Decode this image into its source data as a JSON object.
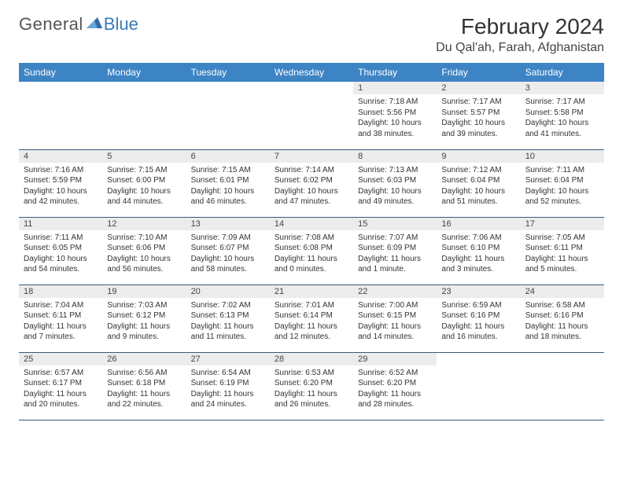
{
  "brand": {
    "name_part1": "General",
    "name_part2": "Blue"
  },
  "title": "February 2024",
  "location": "Du Qal'ah, Farah, Afghanistan",
  "colors": {
    "header_bg": "#3d84c4",
    "header_text": "#ffffff",
    "daynum_bg": "#ececec",
    "row_border": "#3d5a7a",
    "brand_gray": "#555555",
    "brand_blue": "#3a7ab8"
  },
  "typography": {
    "title_fontsize": 28,
    "location_fontsize": 16,
    "header_fontsize": 12,
    "cell_fontsize": 10
  },
  "day_headers": [
    "Sunday",
    "Monday",
    "Tuesday",
    "Wednesday",
    "Thursday",
    "Friday",
    "Saturday"
  ],
  "weeks": [
    [
      {
        "empty": true
      },
      {
        "empty": true
      },
      {
        "empty": true
      },
      {
        "empty": true
      },
      {
        "num": "1",
        "sunrise": "Sunrise: 7:18 AM",
        "sunset": "Sunset: 5:56 PM",
        "daylight": "Daylight: 10 hours and 38 minutes."
      },
      {
        "num": "2",
        "sunrise": "Sunrise: 7:17 AM",
        "sunset": "Sunset: 5:57 PM",
        "daylight": "Daylight: 10 hours and 39 minutes."
      },
      {
        "num": "3",
        "sunrise": "Sunrise: 7:17 AM",
        "sunset": "Sunset: 5:58 PM",
        "daylight": "Daylight: 10 hours and 41 minutes."
      }
    ],
    [
      {
        "num": "4",
        "sunrise": "Sunrise: 7:16 AM",
        "sunset": "Sunset: 5:59 PM",
        "daylight": "Daylight: 10 hours and 42 minutes."
      },
      {
        "num": "5",
        "sunrise": "Sunrise: 7:15 AM",
        "sunset": "Sunset: 6:00 PM",
        "daylight": "Daylight: 10 hours and 44 minutes."
      },
      {
        "num": "6",
        "sunrise": "Sunrise: 7:15 AM",
        "sunset": "Sunset: 6:01 PM",
        "daylight": "Daylight: 10 hours and 46 minutes."
      },
      {
        "num": "7",
        "sunrise": "Sunrise: 7:14 AM",
        "sunset": "Sunset: 6:02 PM",
        "daylight": "Daylight: 10 hours and 47 minutes."
      },
      {
        "num": "8",
        "sunrise": "Sunrise: 7:13 AM",
        "sunset": "Sunset: 6:03 PM",
        "daylight": "Daylight: 10 hours and 49 minutes."
      },
      {
        "num": "9",
        "sunrise": "Sunrise: 7:12 AM",
        "sunset": "Sunset: 6:04 PM",
        "daylight": "Daylight: 10 hours and 51 minutes."
      },
      {
        "num": "10",
        "sunrise": "Sunrise: 7:11 AM",
        "sunset": "Sunset: 6:04 PM",
        "daylight": "Daylight: 10 hours and 52 minutes."
      }
    ],
    [
      {
        "num": "11",
        "sunrise": "Sunrise: 7:11 AM",
        "sunset": "Sunset: 6:05 PM",
        "daylight": "Daylight: 10 hours and 54 minutes."
      },
      {
        "num": "12",
        "sunrise": "Sunrise: 7:10 AM",
        "sunset": "Sunset: 6:06 PM",
        "daylight": "Daylight: 10 hours and 56 minutes."
      },
      {
        "num": "13",
        "sunrise": "Sunrise: 7:09 AM",
        "sunset": "Sunset: 6:07 PM",
        "daylight": "Daylight: 10 hours and 58 minutes."
      },
      {
        "num": "14",
        "sunrise": "Sunrise: 7:08 AM",
        "sunset": "Sunset: 6:08 PM",
        "daylight": "Daylight: 11 hours and 0 minutes."
      },
      {
        "num": "15",
        "sunrise": "Sunrise: 7:07 AM",
        "sunset": "Sunset: 6:09 PM",
        "daylight": "Daylight: 11 hours and 1 minute."
      },
      {
        "num": "16",
        "sunrise": "Sunrise: 7:06 AM",
        "sunset": "Sunset: 6:10 PM",
        "daylight": "Daylight: 11 hours and 3 minutes."
      },
      {
        "num": "17",
        "sunrise": "Sunrise: 7:05 AM",
        "sunset": "Sunset: 6:11 PM",
        "daylight": "Daylight: 11 hours and 5 minutes."
      }
    ],
    [
      {
        "num": "18",
        "sunrise": "Sunrise: 7:04 AM",
        "sunset": "Sunset: 6:11 PM",
        "daylight": "Daylight: 11 hours and 7 minutes."
      },
      {
        "num": "19",
        "sunrise": "Sunrise: 7:03 AM",
        "sunset": "Sunset: 6:12 PM",
        "daylight": "Daylight: 11 hours and 9 minutes."
      },
      {
        "num": "20",
        "sunrise": "Sunrise: 7:02 AM",
        "sunset": "Sunset: 6:13 PM",
        "daylight": "Daylight: 11 hours and 11 minutes."
      },
      {
        "num": "21",
        "sunrise": "Sunrise: 7:01 AM",
        "sunset": "Sunset: 6:14 PM",
        "daylight": "Daylight: 11 hours and 12 minutes."
      },
      {
        "num": "22",
        "sunrise": "Sunrise: 7:00 AM",
        "sunset": "Sunset: 6:15 PM",
        "daylight": "Daylight: 11 hours and 14 minutes."
      },
      {
        "num": "23",
        "sunrise": "Sunrise: 6:59 AM",
        "sunset": "Sunset: 6:16 PM",
        "daylight": "Daylight: 11 hours and 16 minutes."
      },
      {
        "num": "24",
        "sunrise": "Sunrise: 6:58 AM",
        "sunset": "Sunset: 6:16 PM",
        "daylight": "Daylight: 11 hours and 18 minutes."
      }
    ],
    [
      {
        "num": "25",
        "sunrise": "Sunrise: 6:57 AM",
        "sunset": "Sunset: 6:17 PM",
        "daylight": "Daylight: 11 hours and 20 minutes."
      },
      {
        "num": "26",
        "sunrise": "Sunrise: 6:56 AM",
        "sunset": "Sunset: 6:18 PM",
        "daylight": "Daylight: 11 hours and 22 minutes."
      },
      {
        "num": "27",
        "sunrise": "Sunrise: 6:54 AM",
        "sunset": "Sunset: 6:19 PM",
        "daylight": "Daylight: 11 hours and 24 minutes."
      },
      {
        "num": "28",
        "sunrise": "Sunrise: 6:53 AM",
        "sunset": "Sunset: 6:20 PM",
        "daylight": "Daylight: 11 hours and 26 minutes."
      },
      {
        "num": "29",
        "sunrise": "Sunrise: 6:52 AM",
        "sunset": "Sunset: 6:20 PM",
        "daylight": "Daylight: 11 hours and 28 minutes."
      },
      {
        "empty": true
      },
      {
        "empty": true
      }
    ]
  ]
}
